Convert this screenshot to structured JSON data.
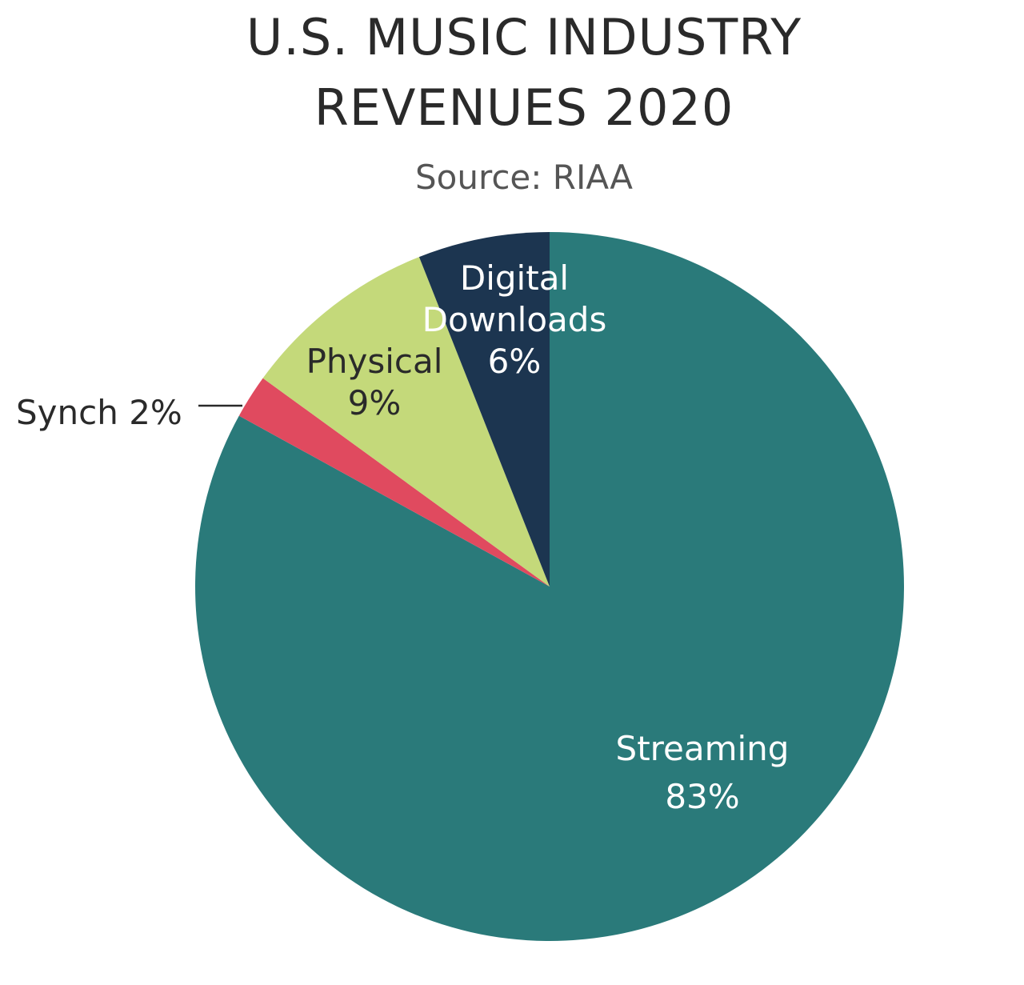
{
  "chart_data": {
    "type": "pie",
    "title_lines": [
      "U.S. MUSIC INDUSTRY",
      "REVENUES 2020"
    ],
    "subtitle": "Source: RIAA",
    "slices": [
      {
        "name": "Streaming",
        "value": 83,
        "label_lines": [
          "Streaming",
          "83%"
        ],
        "color": "#2a7a7a",
        "label_color": "#ffffff"
      },
      {
        "name": "Synch",
        "value": 2,
        "label_lines": [
          "Synch 2%"
        ],
        "color": "#e04a5f",
        "label_color": "#2a2a2a"
      },
      {
        "name": "Physical",
        "value": 9,
        "label_lines": [
          "Physical",
          "9%"
        ],
        "color": "#c4d97a",
        "label_color": "#2a2a2a"
      },
      {
        "name": "Digital Downloads",
        "value": 6,
        "label_lines": [
          "Digital",
          "Downloads",
          "6%"
        ],
        "color": "#1c3550",
        "label_color": "#ffffff"
      }
    ],
    "start_angle_deg": 0,
    "direction": "clockwise",
    "legend": "none"
  }
}
